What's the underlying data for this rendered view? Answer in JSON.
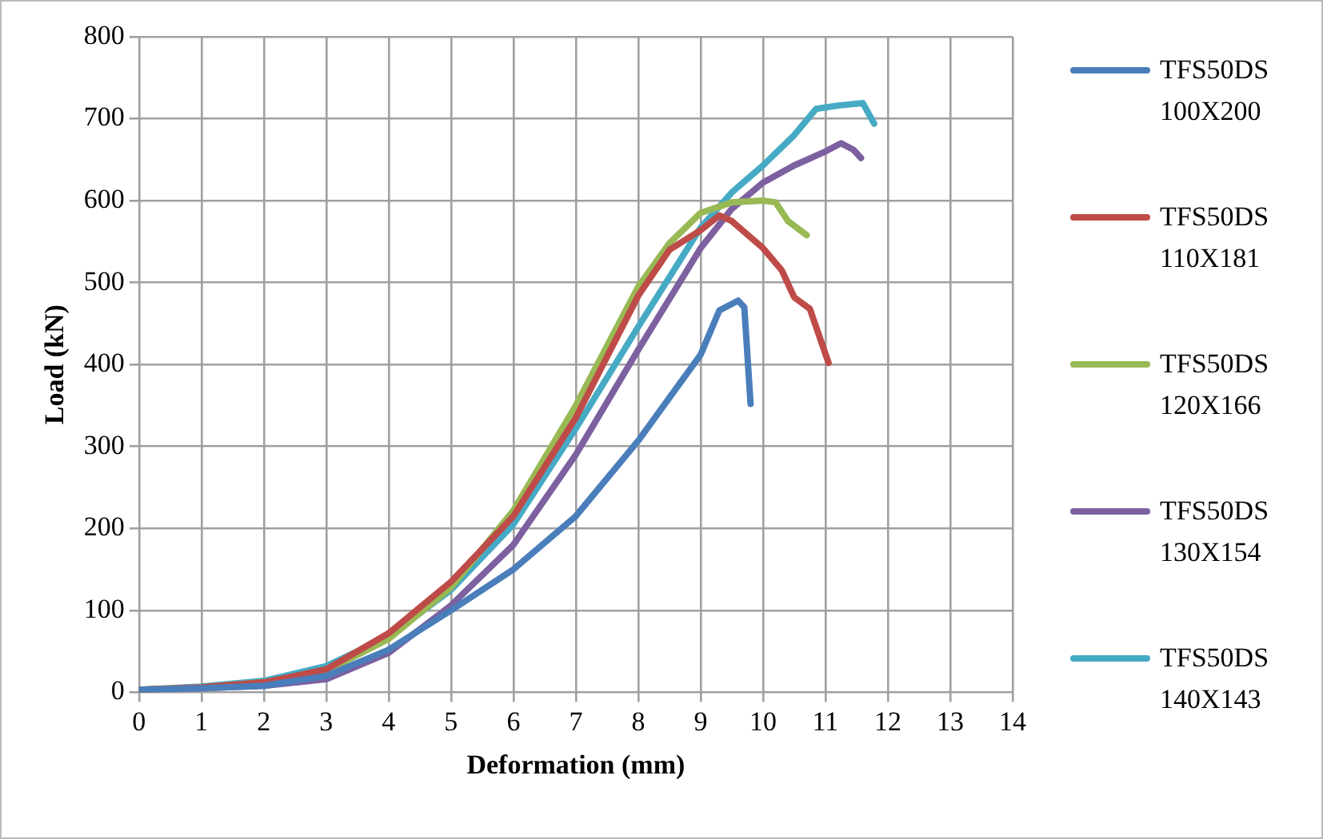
{
  "chart_data": {
    "type": "line",
    "xlabel": "Deformation (mm)",
    "ylabel": "Load (kN)",
    "xlim": [
      0,
      14
    ],
    "xticks": [
      0,
      1,
      2,
      3,
      4,
      5,
      6,
      7,
      8,
      9,
      10,
      11,
      12,
      13,
      14
    ],
    "ylim": [
      0,
      800
    ],
    "yticks": [
      0,
      100,
      200,
      300,
      400,
      500,
      600,
      700,
      800
    ],
    "grid": true,
    "legend": "right",
    "marker": "none",
    "line_style": "solid",
    "series": [
      {
        "name": "TFS50DS 100X200",
        "color": "#4a7ebb",
        "x": [
          0,
          1,
          2,
          3,
          4,
          5,
          6,
          7,
          8,
          9,
          9.3,
          9.6,
          9.7,
          9.8
        ],
        "values": [
          3,
          5,
          8,
          20,
          52,
          100,
          150,
          215,
          307,
          412,
          466,
          478,
          470,
          352
        ]
      },
      {
        "name": "TFS50DS 110X181",
        "color": "#be4b48",
        "x": [
          0,
          1,
          2,
          3,
          4,
          5,
          6,
          7,
          8,
          8.5,
          9,
          9.3,
          9.5,
          10,
          10.3,
          10.5,
          10.75,
          11.05
        ],
        "values": [
          3,
          6,
          12,
          28,
          72,
          135,
          215,
          335,
          484,
          540,
          564,
          582,
          575,
          542,
          515,
          482,
          468,
          402
        ]
      },
      {
        "name": "TFS50DS 120X166",
        "color": "#98b954",
        "x": [
          0,
          1,
          2,
          3,
          4,
          5,
          6,
          7,
          8,
          8.5,
          9,
          9.5,
          10,
          10.2,
          10.4,
          10.7
        ],
        "values": [
          3,
          6,
          12,
          26,
          65,
          128,
          222,
          350,
          495,
          548,
          585,
          598,
          600,
          598,
          575,
          558
        ]
      },
      {
        "name": "TFS50DS 130X154",
        "color": "#7d60a0",
        "x": [
          0,
          1,
          2,
          3,
          4,
          5,
          6,
          7,
          8,
          9,
          9.5,
          10,
          10.5,
          11,
          11.25,
          11.45,
          11.57
        ],
        "values": [
          3,
          5,
          8,
          16,
          48,
          106,
          180,
          290,
          418,
          542,
          590,
          622,
          643,
          660,
          670,
          662,
          652
        ]
      },
      {
        "name": "TFS50DS 140X143",
        "color": "#46aac5",
        "x": [
          0,
          1,
          2,
          3,
          4,
          5,
          6,
          7,
          8,
          9,
          9.5,
          10,
          10.5,
          10.85,
          11.2,
          11.6,
          11.78
        ],
        "values": [
          3,
          7,
          14,
          32,
          68,
          125,
          205,
          322,
          446,
          567,
          610,
          643,
          680,
          712,
          716,
          719,
          694
        ]
      }
    ]
  }
}
